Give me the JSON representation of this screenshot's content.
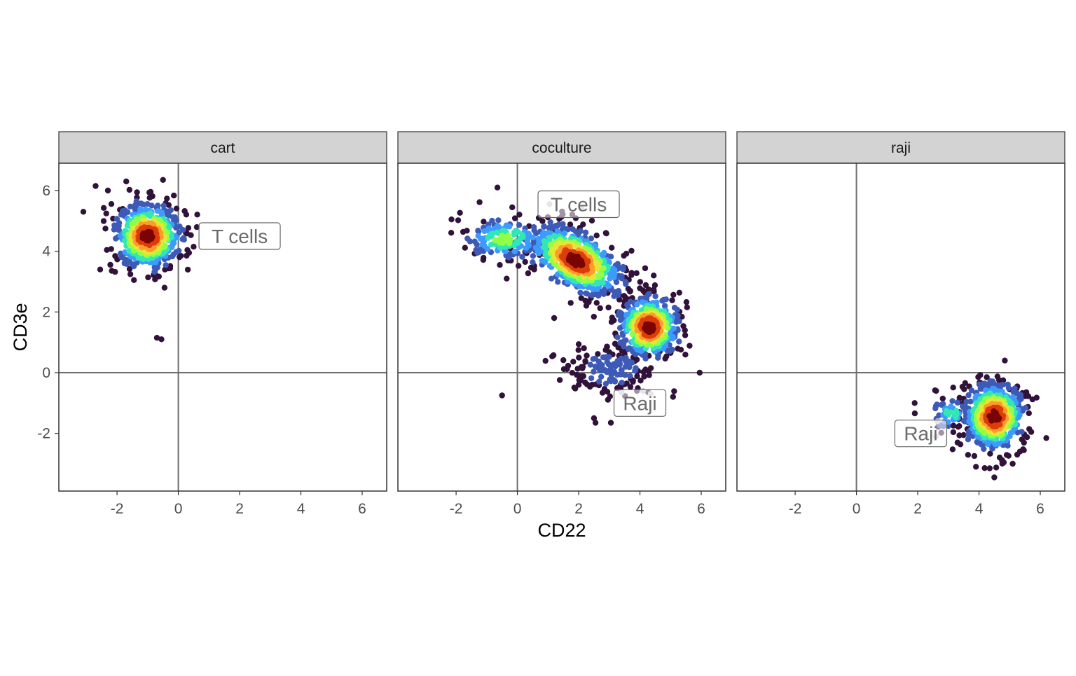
{
  "chart_data": {
    "type": "scatter",
    "x_label": "CD22",
    "y_label": "CD3e",
    "xlim": [
      -3.9,
      6.8
    ],
    "ylim": [
      -3.9,
      6.9
    ],
    "x_ticks": [
      -2,
      0,
      2,
      4,
      6
    ],
    "y_ticks": [
      -2,
      0,
      2,
      4,
      6
    ],
    "reference_lines": {
      "x": 0,
      "y": 0
    },
    "grid": false,
    "color_encoding": "point density (dark purple low, blue, green, yellow, orange, dark red high)",
    "density_palette": [
      "#30123b",
      "#3e5ab7",
      "#3d9bfe",
      "#33e6b5",
      "#90ff48",
      "#e6e635",
      "#fe9b2d",
      "#dc3d07",
      "#7a0403"
    ],
    "panels": [
      {
        "title": "cart",
        "clusters": [
          {
            "center": [
              -1.0,
              4.5
            ],
            "spread": [
              0.55,
              0.55
            ],
            "n": 560,
            "peak_level": 8
          }
        ],
        "outliers": [
          [
            -0.7,
            1.15
          ],
          [
            -0.55,
            1.1
          ],
          [
            -0.45,
            2.8
          ],
          [
            -2.55,
            3.4
          ],
          [
            -1.45,
            3.05
          ],
          [
            0.5,
            4.15
          ],
          [
            0.35,
            3.95
          ],
          [
            -2.7,
            6.15
          ],
          [
            -1.7,
            6.3
          ],
          [
            -0.5,
            6.35
          ],
          [
            -3.1,
            5.3
          ],
          [
            -2.3,
            6.0
          ]
        ],
        "label": {
          "text": "T cells",
          "x": 2.0,
          "y": 4.5
        }
      },
      {
        "title": "coculture",
        "clusters": [
          {
            "center": [
              1.9,
              3.7
            ],
            "spread": [
              0.85,
              0.45
            ],
            "rotation_deg": -30,
            "n": 640,
            "peak_level": 8
          },
          {
            "center": [
              4.3,
              1.5
            ],
            "spread": [
              0.5,
              0.5
            ],
            "n": 520,
            "peak_level": 8
          },
          {
            "center": [
              -0.4,
              4.4
            ],
            "spread": [
              0.7,
              0.35
            ],
            "n": 160,
            "peak_level": 4
          },
          {
            "center": [
              3.0,
              0.1
            ],
            "spread": [
              0.8,
              0.45
            ],
            "n": 150,
            "peak_level": 1
          }
        ],
        "outliers": [
          [
            -0.65,
            6.1
          ],
          [
            -2.15,
            5.05
          ],
          [
            -0.35,
            3.1
          ],
          [
            -0.5,
            -0.75
          ],
          [
            2.5,
            -1.5
          ],
          [
            3.05,
            -1.65
          ],
          [
            2.55,
            -1.65
          ],
          [
            4.45,
            3.2
          ],
          [
            5.95,
            0.0
          ],
          [
            1.2,
            1.8
          ],
          [
            2.0,
            -0.4
          ],
          [
            3.9,
            -0.6
          ]
        ],
        "faint_points": [
          [
            1.05,
            5.55
          ],
          [
            2.1,
            5.4
          ],
          [
            3.4,
            -0.65
          ],
          [
            4.1,
            -0.6
          ],
          [
            4.35,
            -0.7
          ]
        ],
        "labels": [
          {
            "text": "T cells",
            "x": 2.0,
            "y": 5.55
          },
          {
            "text": "Raji",
            "x": 4.0,
            "y": -1.0
          }
        ]
      },
      {
        "title": "raji",
        "clusters": [
          {
            "center": [
              4.5,
              -1.45
            ],
            "spread": [
              0.5,
              0.55
            ],
            "n": 560,
            "peak_level": 8
          },
          {
            "center": [
              3.1,
              -1.35
            ],
            "spread": [
              0.35,
              0.3
            ],
            "n": 50,
            "peak_level": 3
          }
        ],
        "outliers": [
          [
            1.9,
            -1.0
          ],
          [
            4.5,
            -3.45
          ],
          [
            5.1,
            -3.0
          ],
          [
            5.4,
            -2.2
          ],
          [
            2.6,
            -0.6
          ],
          [
            3.3,
            -2.3
          ],
          [
            5.0,
            -0.55
          ],
          [
            3.9,
            -3.1
          ]
        ],
        "faint_points": [
          [
            2.65,
            -1.6
          ],
          [
            2.6,
            -2.1
          ]
        ],
        "label": {
          "text": "Raji",
          "x": 2.1,
          "y": -2.0
        }
      }
    ]
  }
}
